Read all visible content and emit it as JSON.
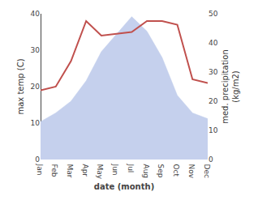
{
  "chart_data": {
    "type": "line",
    "categories": [
      "Jan",
      "Feb",
      "Mar",
      "Apr",
      "May",
      "Jun",
      "Jul",
      "Aug",
      "Sep",
      "Oct",
      "Nov",
      "Dec"
    ],
    "series": [
      {
        "type": "area",
        "axis": "y2",
        "color": "#c5d0ed",
        "values": [
          13,
          16,
          20,
          27,
          37,
          43,
          49,
          44,
          35,
          22,
          16,
          14
        ]
      },
      {
        "type": "line",
        "color": "#c0504d",
        "values": [
          19,
          20,
          27,
          38,
          34,
          34.5,
          35,
          38,
          38,
          37,
          22,
          21
        ]
      }
    ],
    "xlabel": "date (month)",
    "ylabel": "max temp (C)",
    "y2label": "med. precipitation\n(kg/m2)",
    "ylim": [
      0,
      40
    ],
    "yticks": [
      0,
      10,
      20,
      30,
      40
    ],
    "y2lim": [
      0,
      50
    ],
    "y2ticks": [
      0,
      10,
      20,
      30,
      40,
      50
    ],
    "grid": false
  }
}
